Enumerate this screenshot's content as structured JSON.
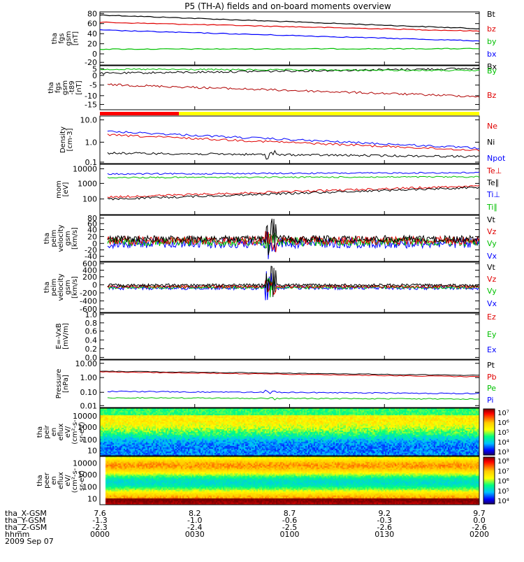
{
  "chart_data": {
    "title": "P5 (TH-A) fields and on-board moments overview",
    "type": "line",
    "date": "2009 Sep 07",
    "x_labels": [
      "0000",
      "0030",
      "0100",
      "0130",
      "0200"
    ],
    "ephemeris": [
      {
        "label": "tha_X-GSM",
        "values": [
          "7.6",
          "8.2",
          "8.7",
          "9.2",
          "9.7"
        ]
      },
      {
        "label": "tha_Y-GSM",
        "values": [
          "-1.3",
          "-1.0",
          "-0.6",
          "-0.3",
          "0.0"
        ]
      },
      {
        "label": "tha_Z-GSM",
        "values": [
          "-2.3",
          "-2.4",
          "-2.5",
          "-2.6",
          "-2.6"
        ]
      },
      {
        "label": "hhmm",
        "values": [
          "0000",
          "0030",
          "0100",
          "0130",
          "0200"
        ]
      }
    ],
    "panels": [
      {
        "ylabel": [
          "tha",
          "fgs",
          "gsm",
          "[nT]"
        ],
        "ticks": [
          "80",
          "60",
          "40",
          "20",
          "0",
          "-20"
        ],
        "legend": [
          {
            "name": "Bt",
            "color": "#000000"
          },
          {
            "name": "bz",
            "color": "#e00000"
          },
          {
            "name": "by",
            "color": "#00c000"
          },
          {
            "name": "bx",
            "color": "#0000ff"
          }
        ],
        "series": [
          {
            "name": "Bt",
            "color": "#000000",
            "start": 77,
            "end": 49
          },
          {
            "name": "bz",
            "color": "#e00000",
            "start": 62,
            "end": 44
          },
          {
            "name": "by",
            "color": "#00c000",
            "start": 7,
            "end": 8
          },
          {
            "name": "bx",
            "color": "#0000ff",
            "start": 46,
            "end": 24
          }
        ]
      },
      {
        "ylabel": [
          "tha",
          "fgs",
          "gsm",
          "-t89",
          "[nT]"
        ],
        "ticks": [
          "5",
          "0",
          "-5",
          "-10",
          "-15"
        ],
        "legend": [
          {
            "name": "Bx",
            "color": "#000000"
          },
          {
            "name": "By",
            "color": "#00c000"
          },
          {
            "name": "Bz",
            "color": "#e00000"
          }
        ]
      },
      {
        "ylabel": [
          "Density",
          "[cm-3]"
        ],
        "ticks": [
          "10.0",
          "1.0",
          "0.1"
        ],
        "legend": [
          {
            "name": "Ne",
            "color": "#e00000"
          },
          {
            "name": "Ni",
            "color": "#000000"
          },
          {
            "name": "Npot",
            "color": "#0000ff"
          }
        ]
      },
      {
        "ylabel": [
          "mom",
          "[eV]"
        ],
        "ticks": [
          "10000",
          "1000",
          "100"
        ],
        "legend": [
          {
            "name": "Te⊥",
            "color": "#e00000"
          },
          {
            "name": "Te∥",
            "color": "#000000"
          },
          {
            "name": "Ti⊥",
            "color": "#0000ff"
          },
          {
            "name": "Ti∥",
            "color": "#00c000"
          }
        ]
      },
      {
        "ylabel": [
          "tha",
          "peim",
          "velocity",
          "gsm",
          "[km/s]"
        ],
        "ticks": [
          "80",
          "60",
          "40",
          "20",
          "0",
          "-20",
          "-40"
        ],
        "legend": [
          {
            "name": "Vt",
            "color": "#000000"
          },
          {
            "name": "Vz",
            "color": "#e00000"
          },
          {
            "name": "Vy",
            "color": "#00c000"
          },
          {
            "name": "Vx",
            "color": "#0000ff"
          }
        ]
      },
      {
        "ylabel": [
          "tha",
          "peim",
          "velocity",
          "gsm",
          "[km/s]"
        ],
        "ticks": [
          "600",
          "400",
          "200",
          "0",
          "-200",
          "-400",
          "-600"
        ],
        "legend": [
          {
            "name": "Vt",
            "color": "#000000"
          },
          {
            "name": "Vz",
            "color": "#e00000"
          },
          {
            "name": "Vy",
            "color": "#00c000"
          },
          {
            "name": "Vx",
            "color": "#0000ff"
          }
        ]
      },
      {
        "ylabel": [
          "E=-VxB",
          "[mV/m]"
        ],
        "ticks": [
          "1.0",
          "0.8",
          "0.6",
          "0.4",
          "0.2",
          "0.0"
        ],
        "legend": [
          {
            "name": "Ez",
            "color": "#e00000"
          },
          {
            "name": "Ey",
            "color": "#00c000"
          },
          {
            "name": "Ex",
            "color": "#0000ff"
          }
        ]
      },
      {
        "ylabel": [
          "Pressure",
          "[nPa]"
        ],
        "ticks": [
          "10.00",
          "1.00",
          "0.10",
          "0.01"
        ],
        "legend": [
          {
            "name": "Pt",
            "color": "#000000"
          },
          {
            "name": "Pb",
            "color": "#e00000"
          },
          {
            "name": "Pe",
            "color": "#00c000"
          },
          {
            "name": "Pi",
            "color": "#0000ff"
          }
        ]
      },
      {
        "ylabel": [
          "tha",
          "peir",
          "en",
          "eflux",
          "eV/",
          "(cm²-s-",
          "sr-eV)"
        ],
        "ticks": [
          "10000",
          "1000",
          "100",
          "10"
        ],
        "colorbar": [
          "10⁷",
          "10⁶",
          "10⁵",
          "10⁴",
          "10³"
        ]
      },
      {
        "ylabel": [
          "tha",
          "peer",
          "en",
          "eflux",
          "eV/",
          "(cm²-s-",
          "sr-eV)"
        ],
        "ticks": [
          "10000",
          "1000",
          "100",
          "10"
        ],
        "colorbar": [
          "10⁸",
          "10⁷",
          "10⁶",
          "10⁵",
          "10⁴"
        ]
      }
    ]
  }
}
